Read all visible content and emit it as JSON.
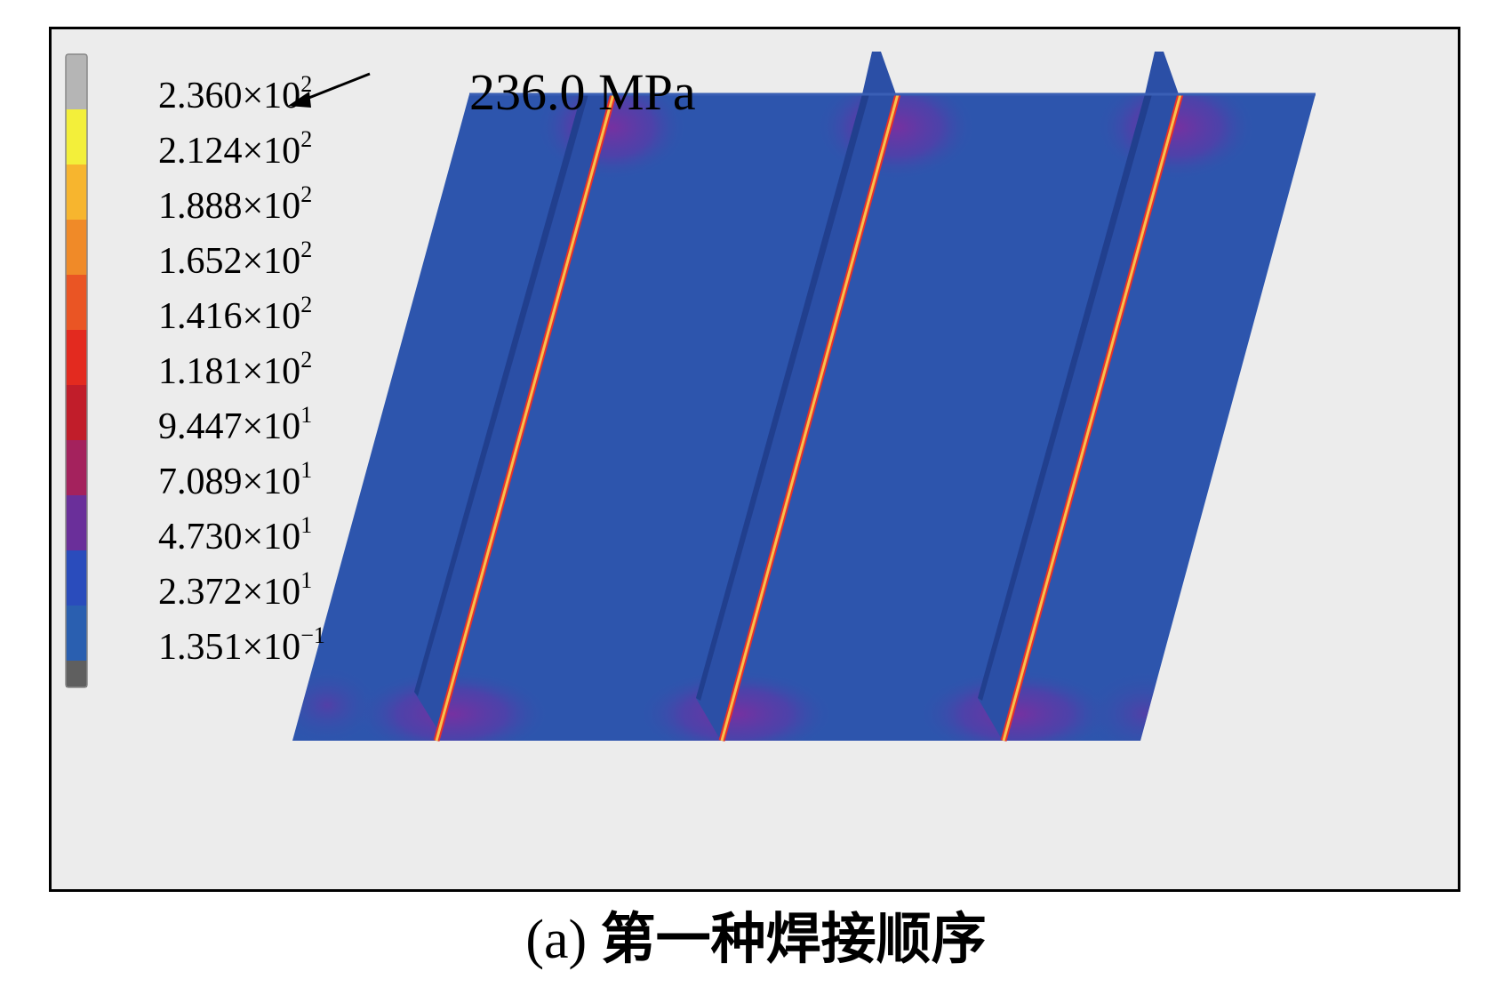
{
  "annotation": {
    "text": "236.0 MPa"
  },
  "legend": {
    "items": [
      {
        "mantissa": "2.360",
        "exp": "2",
        "color": "#b5b5b5"
      },
      {
        "mantissa": "2.124",
        "exp": "2",
        "color": "#f3ef3a"
      },
      {
        "mantissa": "1.888",
        "exp": "2",
        "color": "#f7b52e"
      },
      {
        "mantissa": "1.652",
        "exp": "2",
        "color": "#f08a28"
      },
      {
        "mantissa": "1.416",
        "exp": "2",
        "color": "#ea5524"
      },
      {
        "mantissa": "1.181",
        "exp": "2",
        "color": "#e32a1f"
      },
      {
        "mantissa": "9.447",
        "exp": "1",
        "color": "#c11d2a"
      },
      {
        "mantissa": "7.089",
        "exp": "1",
        "color": "#a4225d"
      },
      {
        "mantissa": "4.730",
        "exp": "1",
        "color": "#6a2f9a"
      },
      {
        "mantissa": "2.372",
        "exp": "1",
        "color": "#2a4cbc"
      },
      {
        "mantissa": "1.351",
        "exp": "−1",
        "color": "#2a5fb0"
      }
    ],
    "bottom_color": "#5f5f5f",
    "times_symbol": "×",
    "base": "10"
  },
  "plate": {
    "color": "#2d55ad",
    "stiffener_color": "#2a4fa3",
    "weld_color": "#f6b84a",
    "hot_color": "#e8302a"
  },
  "caption": {
    "label": "(a)",
    "text": "第一种焊接顺序"
  }
}
